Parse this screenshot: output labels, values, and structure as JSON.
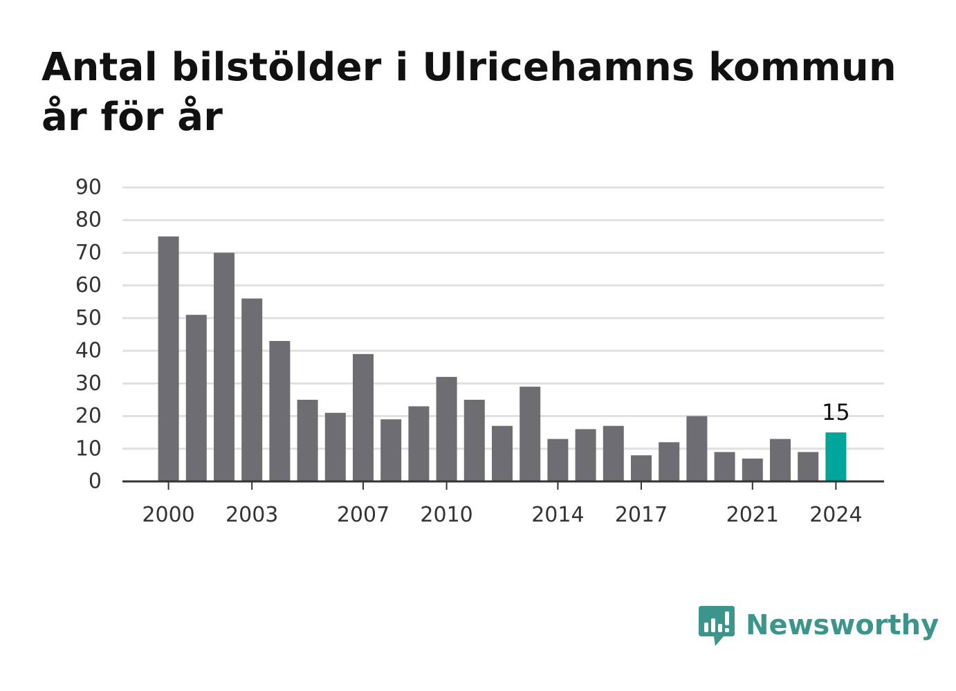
{
  "title_lines": [
    "Antal bilstölder i Ulricehamns kommun",
    "år för år"
  ],
  "brand": {
    "name": "Newsworthy",
    "icon": "newsworthy-logo-icon",
    "color": "#3c958b"
  },
  "chart_data": {
    "type": "bar",
    "title": "Antal bilstölder i Ulricehamns kommun år för år",
    "xlabel": "",
    "ylabel": "",
    "categories": [
      2000,
      2001,
      2002,
      2003,
      2004,
      2005,
      2006,
      2007,
      2008,
      2009,
      2010,
      2011,
      2012,
      2013,
      2014,
      2015,
      2016,
      2017,
      2018,
      2019,
      2020,
      2021,
      2022,
      2023,
      2024
    ],
    "values": [
      75,
      51,
      70,
      56,
      43,
      25,
      21,
      39,
      19,
      23,
      32,
      25,
      17,
      29,
      13,
      16,
      17,
      8,
      12,
      20,
      9,
      7,
      13,
      9,
      15
    ],
    "x_tick_labels": [
      "2000",
      "2003",
      "2007",
      "2010",
      "2014",
      "2017",
      "2021",
      "2024"
    ],
    "y_ticks": [
      0,
      10,
      20,
      30,
      40,
      50,
      60,
      70,
      80,
      90
    ],
    "ylim": [
      0,
      90
    ],
    "grid": true,
    "bar_color": "#6e6d72",
    "highlight_color": "#00a59a",
    "highlight": {
      "category": 2024,
      "value": 15,
      "label": "15"
    }
  }
}
